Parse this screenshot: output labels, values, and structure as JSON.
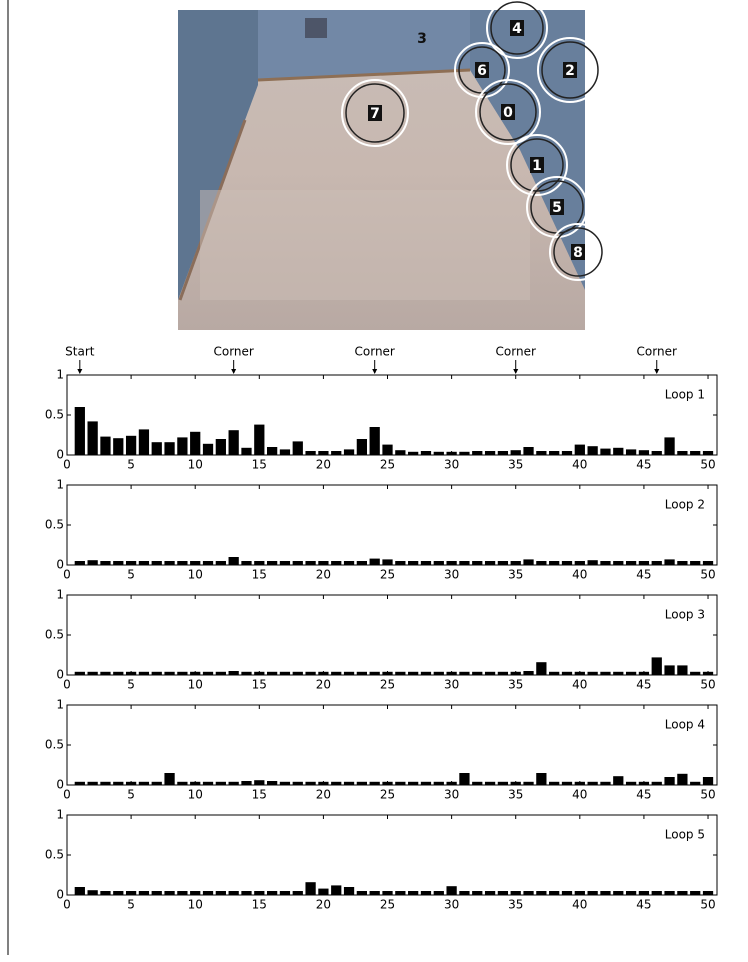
{
  "image": {
    "labels": [
      "3",
      "4",
      "6",
      "2",
      "7",
      "0",
      "1",
      "5",
      "8"
    ]
  },
  "chart_data": [
    {
      "type": "bar",
      "label": "Loop 1",
      "markers": [
        {
          "label": "Start",
          "x": 1
        },
        {
          "label": "Corner",
          "x": 13
        },
        {
          "label": "Corner",
          "x": 24
        },
        {
          "label": "Corner",
          "x": 35
        },
        {
          "label": "Corner",
          "x": 46
        }
      ],
      "x": [
        1,
        2,
        3,
        4,
        5,
        6,
        7,
        8,
        9,
        10,
        11,
        12,
        13,
        14,
        15,
        16,
        17,
        18,
        19,
        20,
        21,
        22,
        23,
        24,
        25,
        26,
        27,
        28,
        29,
        30,
        31,
        32,
        33,
        34,
        35,
        36,
        37,
        38,
        39,
        40,
        41,
        42,
        43,
        44,
        45,
        46,
        47,
        48,
        49,
        50
      ],
      "values": [
        0.6,
        0.42,
        0.23,
        0.21,
        0.24,
        0.32,
        0.16,
        0.16,
        0.22,
        0.29,
        0.14,
        0.2,
        0.31,
        0.09,
        0.38,
        0.1,
        0.07,
        0.17,
        0.05,
        0.05,
        0.05,
        0.07,
        0.2,
        0.35,
        0.13,
        0.06,
        0.04,
        0.05,
        0.04,
        0.04,
        0.04,
        0.05,
        0.05,
        0.05,
        0.06,
        0.1,
        0.05,
        0.05,
        0.05,
        0.13,
        0.11,
        0.08,
        0.09,
        0.07,
        0.06,
        0.05,
        0.22,
        0.05,
        0.05,
        0.05
      ],
      "color": "#000000",
      "xlim": [
        0,
        50.7
      ],
      "ylim": [
        0,
        1
      ],
      "xticks": [
        0,
        5,
        10,
        15,
        20,
        25,
        30,
        35,
        40,
        45,
        50
      ],
      "yticks": [
        0,
        0.5,
        1
      ]
    },
    {
      "type": "bar",
      "label": "Loop 2",
      "x": [
        1,
        2,
        3,
        4,
        5,
        6,
        7,
        8,
        9,
        10,
        11,
        12,
        13,
        14,
        15,
        16,
        17,
        18,
        19,
        20,
        21,
        22,
        23,
        24,
        25,
        26,
        27,
        28,
        29,
        30,
        31,
        32,
        33,
        34,
        35,
        36,
        37,
        38,
        39,
        40,
        41,
        42,
        43,
        44,
        45,
        46,
        47,
        48,
        49,
        50
      ],
      "values": [
        0.05,
        0.06,
        0.05,
        0.05,
        0.05,
        0.05,
        0.05,
        0.05,
        0.05,
        0.05,
        0.05,
        0.05,
        0.1,
        0.05,
        0.05,
        0.05,
        0.05,
        0.05,
        0.05,
        0.05,
        0.05,
        0.05,
        0.05,
        0.08,
        0.07,
        0.05,
        0.05,
        0.05,
        0.05,
        0.05,
        0.05,
        0.05,
        0.05,
        0.05,
        0.05,
        0.07,
        0.05,
        0.05,
        0.05,
        0.05,
        0.06,
        0.05,
        0.05,
        0.05,
        0.05,
        0.05,
        0.07,
        0.05,
        0.05,
        0.05
      ],
      "color": "#000000",
      "xlim": [
        0,
        50.7
      ],
      "ylim": [
        0,
        1
      ],
      "xticks": [
        0,
        5,
        10,
        15,
        20,
        25,
        30,
        35,
        40,
        45,
        50
      ],
      "yticks": [
        0,
        0.5,
        1
      ]
    },
    {
      "type": "bar",
      "label": "Loop 3",
      "x": [
        1,
        2,
        3,
        4,
        5,
        6,
        7,
        8,
        9,
        10,
        11,
        12,
        13,
        14,
        15,
        16,
        17,
        18,
        19,
        20,
        21,
        22,
        23,
        24,
        25,
        26,
        27,
        28,
        29,
        30,
        31,
        32,
        33,
        34,
        35,
        36,
        37,
        38,
        39,
        40,
        41,
        42,
        43,
        44,
        45,
        46,
        47,
        48,
        49,
        50
      ],
      "values": [
        0.04,
        0.04,
        0.04,
        0.04,
        0.04,
        0.04,
        0.04,
        0.04,
        0.04,
        0.04,
        0.04,
        0.04,
        0.05,
        0.04,
        0.04,
        0.04,
        0.04,
        0.04,
        0.04,
        0.04,
        0.04,
        0.04,
        0.04,
        0.04,
        0.04,
        0.04,
        0.04,
        0.04,
        0.04,
        0.04,
        0.04,
        0.04,
        0.04,
        0.04,
        0.04,
        0.05,
        0.16,
        0.04,
        0.04,
        0.04,
        0.04,
        0.04,
        0.04,
        0.04,
        0.04,
        0.22,
        0.12,
        0.12,
        0.04,
        0.04
      ],
      "color": "#000000",
      "xlim": [
        0,
        50.7
      ],
      "ylim": [
        0,
        1
      ],
      "xticks": [
        0,
        5,
        10,
        15,
        20,
        25,
        30,
        35,
        40,
        45,
        50
      ],
      "yticks": [
        0,
        0.5,
        1
      ]
    },
    {
      "type": "bar",
      "label": "Loop 4",
      "x": [
        1,
        2,
        3,
        4,
        5,
        6,
        7,
        8,
        9,
        10,
        11,
        12,
        13,
        14,
        15,
        16,
        17,
        18,
        19,
        20,
        21,
        22,
        23,
        24,
        25,
        26,
        27,
        28,
        29,
        30,
        31,
        32,
        33,
        34,
        35,
        36,
        37,
        38,
        39,
        40,
        41,
        42,
        43,
        44,
        45,
        46,
        47,
        48,
        49,
        50
      ],
      "values": [
        0.04,
        0.04,
        0.04,
        0.04,
        0.04,
        0.04,
        0.04,
        0.15,
        0.04,
        0.04,
        0.04,
        0.04,
        0.04,
        0.05,
        0.06,
        0.05,
        0.04,
        0.04,
        0.04,
        0.04,
        0.04,
        0.04,
        0.04,
        0.04,
        0.04,
        0.04,
        0.04,
        0.04,
        0.04,
        0.04,
        0.15,
        0.04,
        0.04,
        0.04,
        0.04,
        0.04,
        0.15,
        0.04,
        0.04,
        0.04,
        0.04,
        0.04,
        0.11,
        0.04,
        0.04,
        0.04,
        0.1,
        0.14,
        0.04,
        0.1
      ],
      "color": "#000000",
      "xlim": [
        0,
        50.7
      ],
      "ylim": [
        0,
        1
      ],
      "xticks": [
        0,
        5,
        10,
        15,
        20,
        25,
        30,
        35,
        40,
        45,
        50
      ],
      "yticks": [
        0,
        0.5,
        1
      ]
    },
    {
      "type": "bar",
      "label": "Loop 5",
      "x": [
        1,
        2,
        3,
        4,
        5,
        6,
        7,
        8,
        9,
        10,
        11,
        12,
        13,
        14,
        15,
        16,
        17,
        18,
        19,
        20,
        21,
        22,
        23,
        24,
        25,
        26,
        27,
        28,
        29,
        30,
        31,
        32,
        33,
        34,
        35,
        36,
        37,
        38,
        39,
        40,
        41,
        42,
        43,
        44,
        45,
        46,
        47,
        48,
        49,
        50
      ],
      "values": [
        0.1,
        0.06,
        0.05,
        0.05,
        0.05,
        0.05,
        0.05,
        0.05,
        0.05,
        0.05,
        0.05,
        0.05,
        0.05,
        0.05,
        0.05,
        0.05,
        0.05,
        0.05,
        0.16,
        0.08,
        0.12,
        0.1,
        0.05,
        0.05,
        0.05,
        0.05,
        0.05,
        0.05,
        0.05,
        0.11,
        0.05,
        0.05,
        0.05,
        0.05,
        0.05,
        0.05,
        0.05,
        0.05,
        0.05,
        0.05,
        0.05,
        0.05,
        0.05,
        0.05,
        0.05,
        0.05,
        0.05,
        0.05,
        0.05,
        0.05
      ],
      "color": "#000000",
      "xlim": [
        0,
        50.7
      ],
      "ylim": [
        0,
        1
      ],
      "xticks": [
        0,
        5,
        10,
        15,
        20,
        25,
        30,
        35,
        40,
        45,
        50
      ],
      "yticks": [
        0,
        0.5,
        1
      ]
    }
  ]
}
